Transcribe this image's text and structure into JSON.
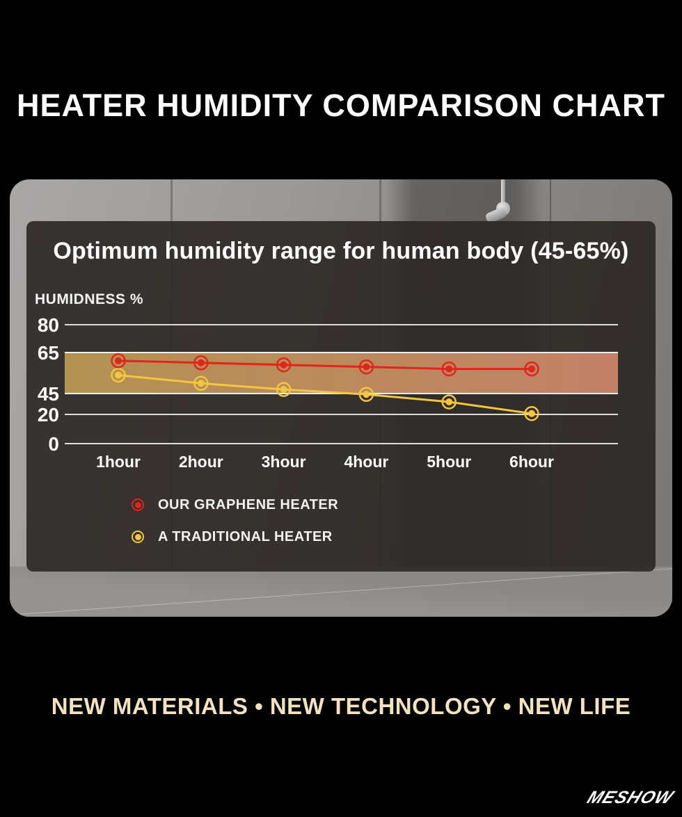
{
  "header": {
    "title": "HEATER HUMIDITY COMPARISON CHART"
  },
  "chart_data": {
    "type": "line",
    "title": "Optimum humidity range for human body (45-65%)",
    "y_axis_label": "HUMIDNESS %",
    "xlabel": "",
    "ylabel": "HUMIDNESS %",
    "categories": [
      "1hour",
      "2hour",
      "3hour",
      "4hour",
      "5hour",
      "6hour"
    ],
    "y_ticks": [
      80,
      65,
      45,
      20,
      0
    ],
    "gridline_values": [
      80,
      20,
      0
    ],
    "ylim": [
      0,
      88
    ],
    "grid": true,
    "legend_position": "bottom-left",
    "optimal_band": {
      "from": 45,
      "to": 65,
      "label": "45-65%",
      "color_left": "#b39252",
      "color_mid": "#bc895e",
      "color_right": "#c28067"
    },
    "series": [
      {
        "name": "OUR GRAPHENE HEATER",
        "color": "#e1251b",
        "values": [
          61,
          60,
          59,
          58,
          57,
          57
        ]
      },
      {
        "name": "A TRADITIONAL HEATER",
        "color": "#f2c63e",
        "values": [
          54,
          50,
          47,
          44,
          35,
          21
        ]
      }
    ]
  },
  "footer": {
    "tagline": "NEW MATERIALS •  NEW TECHNOLOGY • NEW LIFE",
    "logo_text": "MESHOW"
  },
  "colors": {
    "background": "#000000",
    "panel": "#2b2723",
    "tagline": "#f3e2c0",
    "gridline": "#e9e7e5",
    "accent_red": "#e1251b",
    "accent_yellow": "#f2c63e"
  }
}
